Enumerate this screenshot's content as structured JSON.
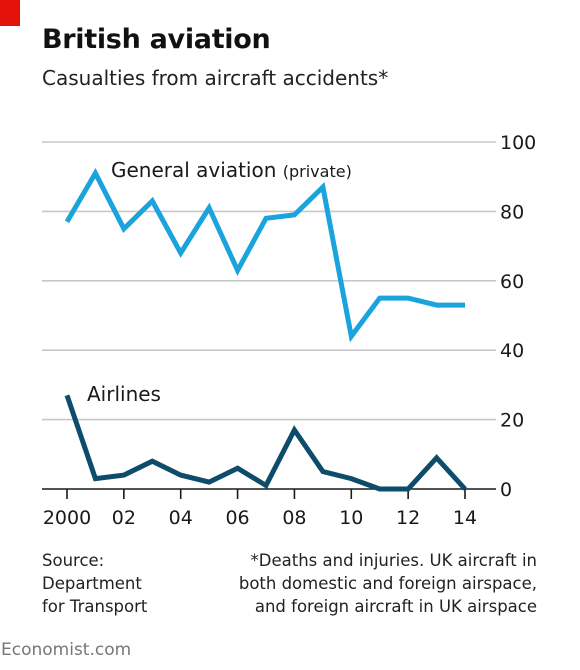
{
  "header": {
    "title": "British aviation",
    "subtitle": "Casualties from aircraft accidents*"
  },
  "source": {
    "lines": [
      "Source:",
      "Department",
      "for Transport"
    ]
  },
  "footnote": {
    "lines": [
      "*Deaths and injuries. UK aircraft in",
      "both domestic and foreign airspace,",
      "and foreign aircraft in UK airspace"
    ]
  },
  "brand": "Economist.com",
  "colors": {
    "general_aviation": "#1aa3dd",
    "airlines": "#0d4d6b",
    "gridline": "#c8c8c8",
    "accent_red": "#e3120b"
  },
  "chart_data": {
    "type": "line",
    "title": "British aviation",
    "subtitle": "Casualties from aircraft accidents*",
    "x": [
      2000,
      2001,
      2002,
      2003,
      2004,
      2005,
      2006,
      2007,
      2008,
      2009,
      2010,
      2011,
      2012,
      2013,
      2014
    ],
    "x_tick_values": [
      2000,
      2002,
      2004,
      2006,
      2008,
      2010,
      2012,
      2014
    ],
    "x_tick_labels": [
      "2000",
      "02",
      "04",
      "06",
      "08",
      "10",
      "12",
      "14"
    ],
    "y_ticks": [
      0,
      20,
      40,
      60,
      80,
      100
    ],
    "ylim": [
      0,
      100
    ],
    "y_axis_side": "right",
    "grid": true,
    "series": [
      {
        "name": "General aviation",
        "name_suffix": "(private)",
        "color": "#1aa3dd",
        "values": [
          77,
          91,
          75,
          83,
          68,
          81,
          63,
          78,
          79,
          87,
          44,
          55,
          55,
          53,
          53
        ]
      },
      {
        "name": "Airlines",
        "color": "#0d4d6b",
        "values": [
          27,
          3,
          4,
          8,
          4,
          2,
          6,
          1,
          17,
          5,
          3,
          0,
          0,
          9,
          0
        ]
      }
    ]
  }
}
